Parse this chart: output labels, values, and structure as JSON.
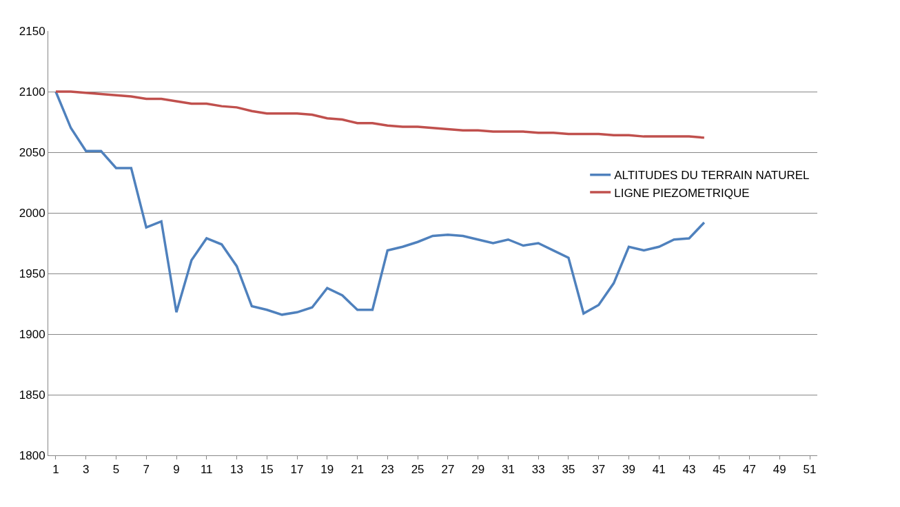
{
  "chart_data": {
    "type": "line",
    "x": [
      1,
      2,
      3,
      4,
      5,
      6,
      7,
      8,
      9,
      10,
      11,
      12,
      13,
      14,
      15,
      16,
      17,
      18,
      19,
      20,
      21,
      22,
      23,
      24,
      25,
      26,
      27,
      28,
      29,
      30,
      31,
      32,
      33,
      34,
      35,
      36,
      37,
      38,
      39,
      40,
      41,
      42,
      43,
      44
    ],
    "series": [
      {
        "name": "ALTITUDES DU TERRAIN NATUREL",
        "color": "#4f81bd",
        "values": [
          2100,
          2070,
          2051,
          2051,
          2037,
          2037,
          1988,
          1993,
          1918,
          1961,
          1979,
          1974,
          1956,
          1923,
          1920,
          1916,
          1918,
          1922,
          1938,
          1932,
          1920,
          1920,
          1969,
          1972,
          1976,
          1981,
          1982,
          1981,
          1978,
          1975,
          1978,
          1973,
          1975,
          1969,
          1963,
          1917,
          1924,
          1942,
          1972,
          1969,
          1972,
          1978,
          1979,
          1992
        ]
      },
      {
        "name": "LIGNE PIEZOMETRIQUE",
        "color": "#c0504d",
        "values": [
          2100,
          2100,
          2099,
          2098,
          2097,
          2096,
          2094,
          2094,
          2092,
          2090,
          2090,
          2088,
          2087,
          2084,
          2082,
          2082,
          2082,
          2081,
          2078,
          2077,
          2074,
          2074,
          2072,
          2071,
          2071,
          2070,
          2069,
          2068,
          2068,
          2067,
          2067,
          2067,
          2066,
          2066,
          2065,
          2065,
          2065,
          2064,
          2064,
          2063,
          2063,
          2063,
          2063,
          2062
        ]
      }
    ],
    "xlim": [
      0.5,
      51.5
    ],
    "xticks": [
      1,
      3,
      5,
      7,
      9,
      11,
      13,
      15,
      17,
      19,
      21,
      23,
      25,
      27,
      29,
      31,
      33,
      35,
      37,
      39,
      41,
      43,
      45,
      47,
      49,
      51
    ],
    "ylim": [
      1800,
      2150
    ],
    "yticks": [
      1800,
      1850,
      1900,
      1950,
      2000,
      2050,
      2100,
      2150
    ],
    "grid": "y",
    "legend": "right",
    "marker": "none",
    "line_style": "solid"
  }
}
